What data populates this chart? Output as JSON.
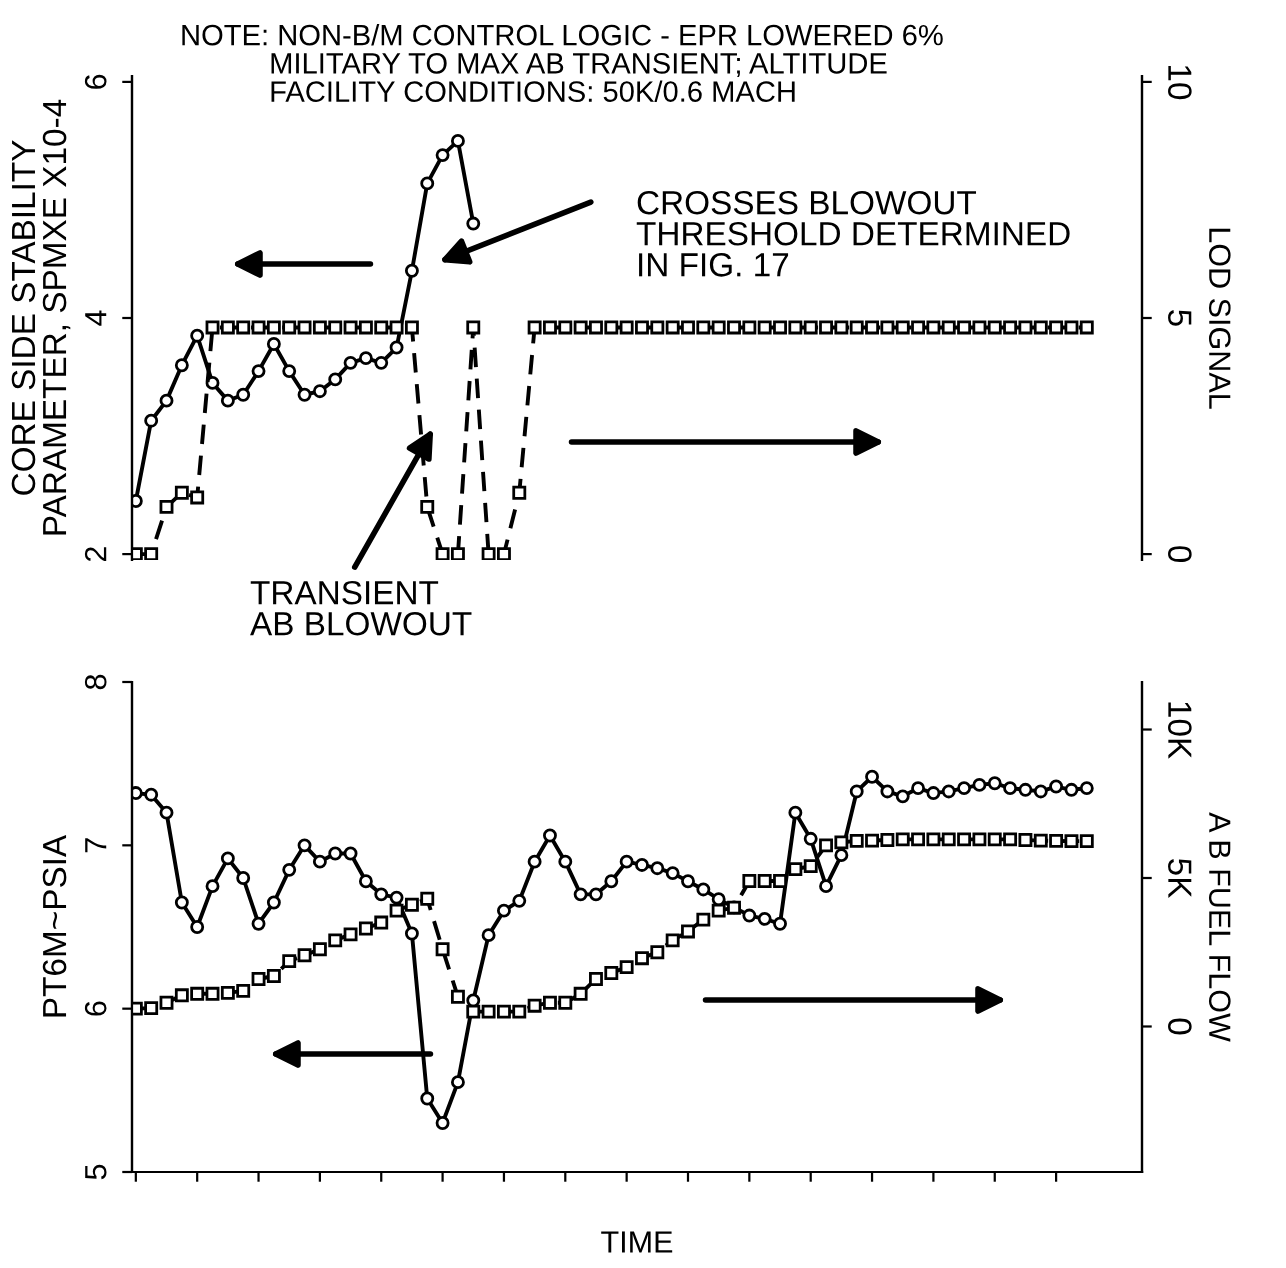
{
  "chart_data": [
    {
      "type": "line",
      "categories": [
        null,
        null,
        null,
        null,
        null,
        null,
        null,
        null,
        null,
        null,
        null,
        null,
        null,
        null,
        null,
        null,
        null,
        null,
        null,
        null,
        null,
        null,
        null,
        null,
        null,
        null,
        null,
        null,
        null,
        null,
        null,
        null,
        null,
        null,
        null,
        null,
        null,
        null,
        null,
        null,
        null,
        null,
        null,
        null,
        null,
        null,
        null,
        null,
        null,
        null,
        null,
        null,
        null,
        null,
        null,
        null,
        null,
        null,
        null,
        null,
        null,
        null,
        null
      ],
      "series": [
        {
          "color": "#000000",
          "marker": "circle",
          "line_style": "solid",
          "values": [
            2.45,
            3.13,
            3.3,
            3.6,
            3.85,
            3.45,
            3.3,
            3.35,
            3.55,
            3.78,
            3.55,
            3.35,
            3.38,
            3.48,
            3.62,
            3.66,
            3.62,
            3.75,
            4.4,
            5.14,
            5.38,
            5.5,
            4.8,
            null,
            null,
            null,
            null,
            null,
            null,
            null,
            null,
            null,
            null,
            null,
            null,
            null,
            null,
            null,
            null,
            null,
            null,
            null,
            null,
            null,
            null,
            null,
            null,
            null,
            null,
            null,
            null,
            null,
            null,
            null,
            null,
            null,
            null,
            null,
            null,
            null,
            null,
            null,
            null
          ]
        },
        {
          "color": "#000000",
          "marker": "square",
          "line_style": "dashed",
          "axis": "y2",
          "values": [
            0,
            0,
            1.0,
            1.3,
            1.2,
            4.8,
            4.8,
            4.8,
            4.8,
            4.8,
            4.8,
            4.8,
            4.8,
            4.8,
            4.8,
            4.8,
            4.8,
            4.8,
            4.8,
            1.0,
            0,
            0,
            4.8,
            0,
            0,
            1.3,
            4.8,
            4.8,
            4.8,
            4.8,
            4.8,
            4.8,
            4.8,
            4.8,
            4.8,
            4.8,
            4.8,
            4.8,
            4.8,
            4.8,
            4.8,
            4.8,
            4.8,
            4.8,
            4.8,
            4.8,
            4.8,
            4.8,
            4.8,
            4.8,
            4.8,
            4.8,
            4.8,
            4.8,
            4.8,
            4.8,
            4.8,
            4.8,
            4.8,
            4.8,
            4.8,
            4.8,
            4.8
          ]
        }
      ],
      "ylim": [
        1.95,
        6.05
      ],
      "yticks": [
        2,
        4,
        6
      ],
      "y2lim": [
        -0.125,
        10.125
      ],
      "y2ticks": [
        0,
        5,
        10
      ],
      "ylabel": "CORE SIDE STABILITY\nPARAMETER, SPMXE X10-4",
      "y2label": "LOD SIGNAL",
      "tick_labels": "y",
      "annotations": [
        "NOTE: NON-B/M CONTROL LOGIC - EPR LOWERED 6%\n           MILITARY TO MAX AB TRANSIENT; ALTITUDE\n           FACILITY CONDITIONS: 50K/0.6 MACH",
        "CROSSES BLOWOUT\nTHRESHOLD DETERMINED\nIN FIG. 17",
        "TRANSIENT\nAB BLOWOUT"
      ]
    },
    {
      "type": "line",
      "categories": [
        null,
        null,
        null,
        null,
        null,
        null,
        null,
        null,
        null,
        null,
        null,
        null,
        null,
        null,
        null,
        null,
        null,
        null,
        null,
        null,
        null,
        null,
        null,
        null,
        null,
        null,
        null,
        null,
        null,
        null,
        null,
        null,
        null,
        null,
        null,
        null,
        null,
        null,
        null,
        null,
        null,
        null,
        null,
        null,
        null,
        null,
        null,
        null,
        null,
        null,
        null,
        null,
        null,
        null,
        null,
        null,
        null,
        null,
        null,
        null,
        null,
        null,
        null
      ],
      "series": [
        {
          "color": "#000000",
          "marker": "circle",
          "line_style": "solid",
          "values": [
            7.32,
            7.31,
            7.2,
            6.65,
            6.5,
            6.75,
            6.92,
            6.8,
            6.52,
            6.65,
            6.85,
            7.0,
            6.9,
            6.95,
            6.95,
            6.78,
            6.7,
            6.68,
            6.46,
            5.45,
            5.3,
            5.55,
            6.05,
            6.45,
            6.6,
            6.66,
            6.9,
            7.06,
            6.9,
            6.7,
            6.7,
            6.78,
            6.9,
            6.88,
            6.86,
            6.83,
            6.78,
            6.73,
            6.67,
            6.62,
            6.57,
            6.55,
            6.52,
            7.2,
            7.04,
            6.75,
            6.94,
            7.33,
            7.42,
            7.33,
            7.3,
            7.35,
            7.32,
            7.33,
            7.35,
            7.37,
            7.38,
            7.35,
            7.34,
            7.33,
            7.36,
            7.34,
            7.35
          ]
        },
        {
          "color": "#000000",
          "marker": "square",
          "line_style": "dashed",
          "axis": "y2",
          "values": [
            600,
            620,
            800,
            1050,
            1100,
            1100,
            1130,
            1200,
            1600,
            1700,
            2200,
            2400,
            2600,
            2900,
            3100,
            3300,
            3500,
            3900,
            4100,
            4300,
            2600,
            1000,
            500,
            500,
            500,
            500,
            700,
            800,
            800,
            1100,
            1600,
            1800,
            2000,
            2300,
            2500,
            2900,
            3200,
            3600,
            3900,
            4000,
            4900,
            4900,
            4900,
            5300,
            5400,
            6100,
            6200,
            6250,
            6260,
            6280,
            6300,
            6300,
            6300,
            6300,
            6300,
            6300,
            6300,
            6300,
            6280,
            6260,
            6250,
            6240,
            6240
          ]
        }
      ],
      "ylim": [
        5,
        8
      ],
      "yticks": [
        5,
        6,
        7,
        8
      ],
      "y2lim": [
        -4900,
        11600
      ],
      "y2ticks": [
        {
          "value": 0,
          "label": "0"
        },
        {
          "value": 5000,
          "label": "5K"
        },
        {
          "value": 10000,
          "label": "10K"
        }
      ],
      "ylabel": "PT6M~PSIA",
      "y2label": "A B FUEL FLOW",
      "xlabel": "TIME",
      "tick_labels": "y"
    }
  ]
}
